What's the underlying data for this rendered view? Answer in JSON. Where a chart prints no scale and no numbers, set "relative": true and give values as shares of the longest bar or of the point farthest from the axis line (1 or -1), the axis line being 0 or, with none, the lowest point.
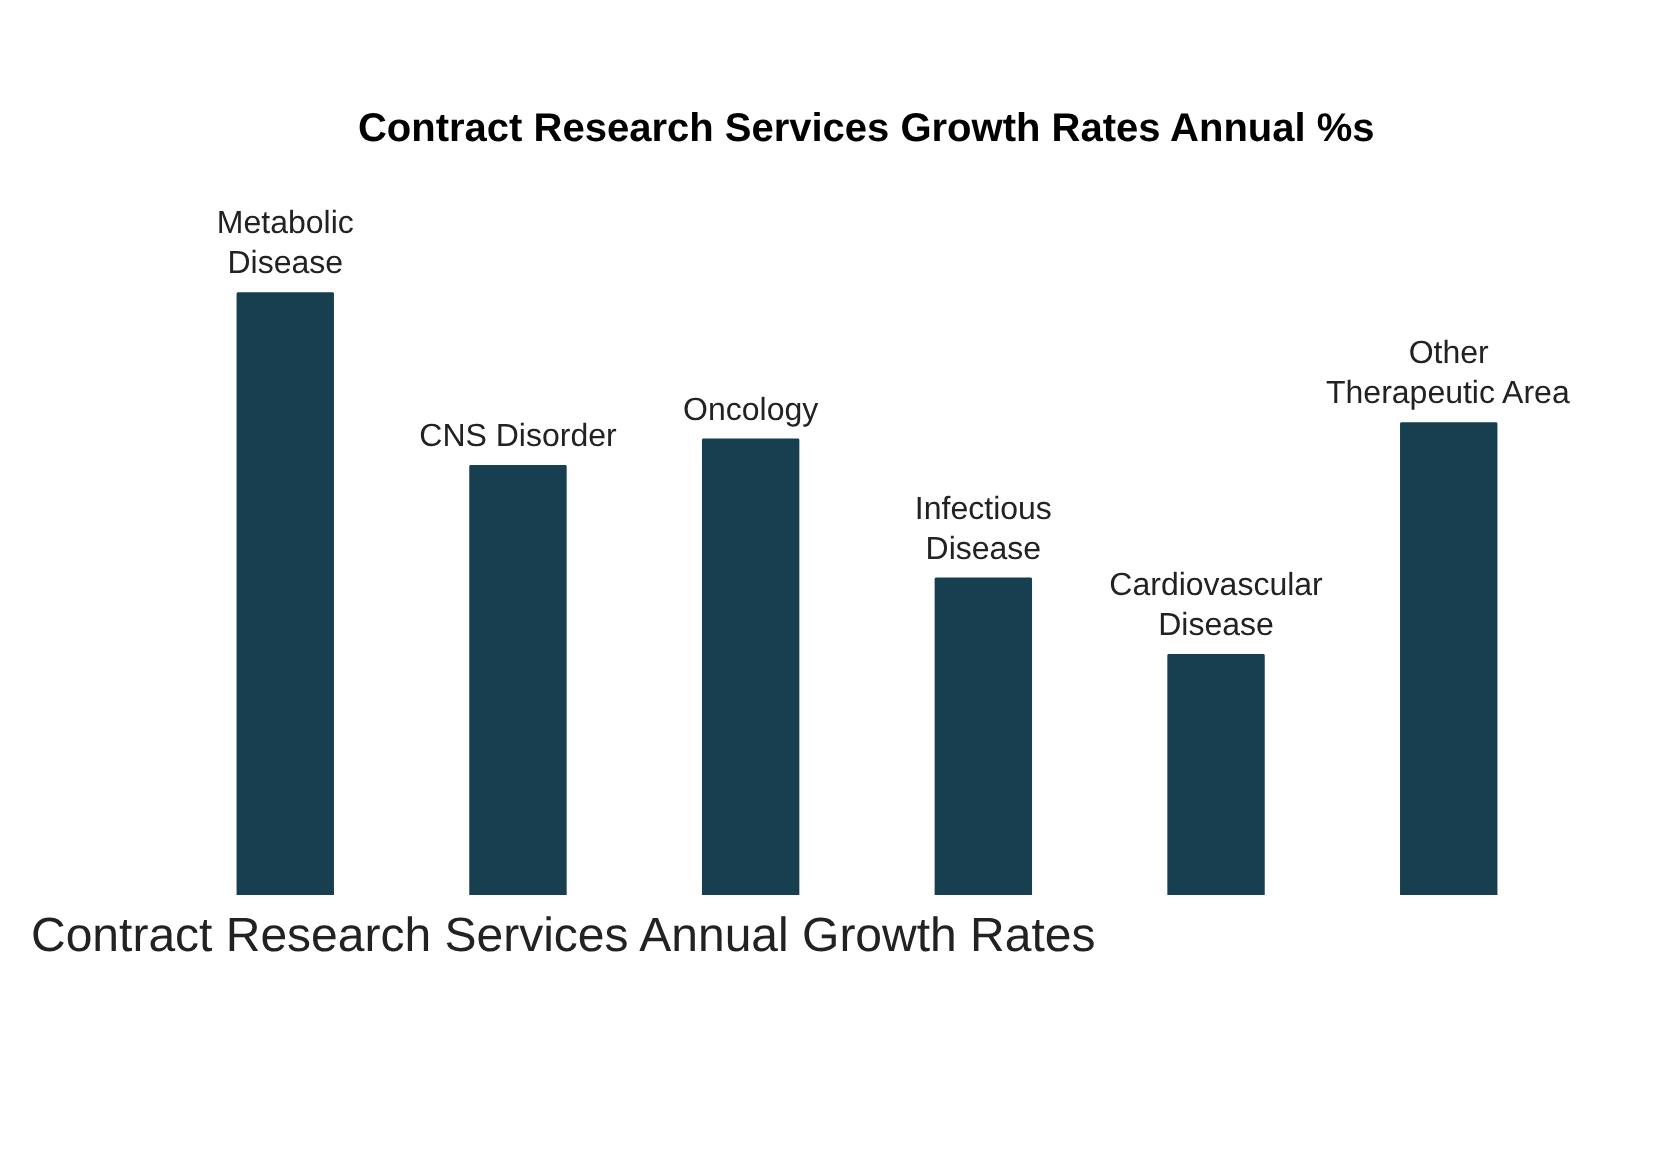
{
  "chart_data": {
    "type": "bar",
    "title": "Contract Research Services Growth Rates Annual %s",
    "categories": [
      "Metabolic Disease",
      "CNS Disorder",
      "Oncology",
      "Infectious Disease",
      "Cardiovascular Disease",
      "Other Therapeutic Area"
    ],
    "values": [
      1,
      0.713,
      0.757,
      0.526,
      0.399,
      0.784
    ],
    "color": "#173f4f",
    "relative": true,
    "grid": false,
    "annotations": [
      "Contract Research Services Annual Growth Rates"
    ]
  }
}
